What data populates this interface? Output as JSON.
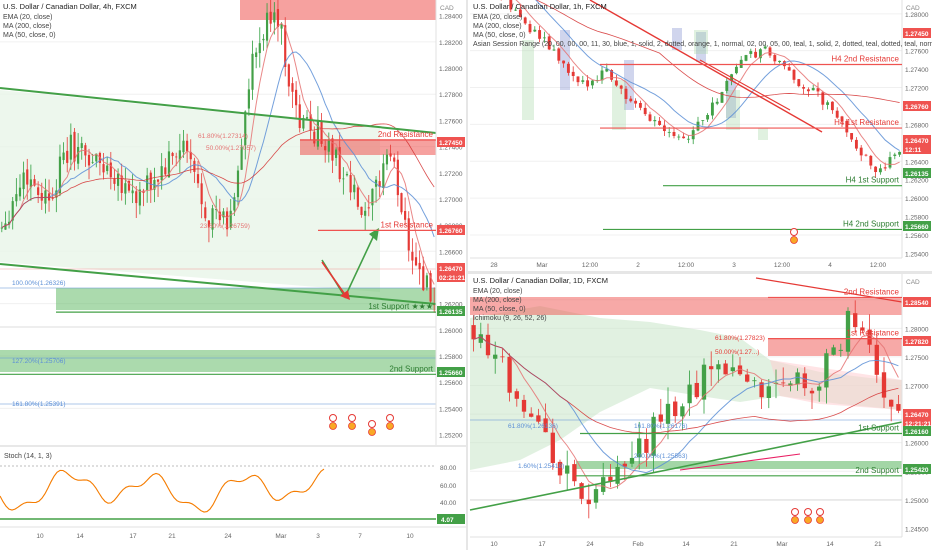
{
  "charts": [
    {
      "id": "left",
      "title": "U.S. Dollar / Canadian Dollar, 4h, FXCM",
      "indicators": [
        "EMA (20, close)",
        "MA (200, close)",
        "MA (50, close, 0)"
      ],
      "currency": "CAD",
      "y_ticks": [
        "1.28400",
        "1.28200",
        "1.28000",
        "1.27800",
        "1.27600",
        "1.27400",
        "1.27200",
        "1.27000",
        "1.26800",
        "1.26600",
        "1.26400",
        "1.26200",
        "1.26000",
        "1.25800",
        "1.25600",
        "1.25400",
        "1.25200"
      ],
      "price_tags": [
        {
          "label": "1.27450",
          "color": "#ef5350"
        },
        {
          "label": "1.26760",
          "color": "#ef5350"
        },
        {
          "label": "1.26470",
          "color": "#ef5350"
        },
        {
          "label": "02:21:21",
          "color": "#ef5350"
        },
        {
          "label": "1.26135",
          "color": "#43a047"
        },
        {
          "label": "1.25660",
          "color": "#43a047"
        }
      ],
      "levels": [
        {
          "name": "2nd Resistance",
          "price": 1.2745,
          "color": "#ef5350"
        },
        {
          "name": "1st Resistance",
          "price": 1.2676,
          "color": "#ef5350"
        },
        {
          "name": "1st Support ★★★",
          "price": 1.26135,
          "color": "#43a047"
        },
        {
          "name": "2nd Support",
          "price": 1.2566,
          "color": "#43a047"
        }
      ],
      "fib_labels": [
        "100.00%(1.26326)",
        "23.60%(1.26759)",
        "127.20%(1.25706)",
        "161.80%(1.25391)",
        "61.80%(1.27314)",
        "50.00%(1.27057)"
      ],
      "x_ticks": [
        "10",
        "14",
        "17",
        "21",
        "24",
        "Mar",
        "3",
        "7",
        "10"
      ],
      "stoch": {
        "label": "Stoch (14, 1, 3)",
        "y_ticks": [
          "80.00",
          "60.00",
          "40.00",
          "20.00"
        ],
        "tag": "4.07"
      }
    },
    {
      "id": "top-right",
      "title": "U.S. Dollar / Canadian Dollar, 1h, FXCM",
      "indicators": [
        "EMA (20, close)",
        "MA (200, close)",
        "MA (50, close, 0)",
        "Asian Session Range (20, 00, 00, 00, 11, 30, blue, 1, solid, 2, dotted, orange, 1, normal, 02, 00, 05, 00, teal, 1, solid, 2, dotted, teal, dotted, teal, normal, 08, 0"
      ],
      "currency": "CAD",
      "y_ticks": [
        "1.28000",
        "1.27800",
        "1.27600",
        "1.27400",
        "1.27200",
        "1.27000",
        "1.26800",
        "1.26600",
        "1.26400",
        "1.26200",
        "1.26000",
        "1.25800",
        "1.25600",
        "1.25400"
      ],
      "price_tags": [
        {
          "label": "1.27450",
          "color": "#ef5350"
        },
        {
          "label": "1.26760",
          "color": "#ef5350"
        },
        {
          "label": "1.26470",
          "color": "#ef5350"
        },
        {
          "label": "12:11",
          "color": "#ef5350"
        },
        {
          "label": "1.26135",
          "color": "#43a047"
        },
        {
          "label": "1.25660",
          "color": "#43a047"
        }
      ],
      "levels": [
        {
          "name": "H4 2nd Resistance",
          "price": 1.2745,
          "color": "#ef5350"
        },
        {
          "name": "H4 1st Resistance",
          "price": 1.2676,
          "color": "#ef5350"
        },
        {
          "name": "H4 1st Support",
          "price": 1.26135,
          "color": "#43a047"
        },
        {
          "name": "H4 2nd Support",
          "price": 1.2566,
          "color": "#43a047"
        }
      ],
      "x_ticks": [
        "28",
        "Mar",
        "12:00",
        "2",
        "12:00",
        "3",
        "12:00",
        "4",
        "12:00"
      ]
    },
    {
      "id": "bottom-right",
      "title": "U.S. Dollar / Canadian Dollar, 1D, FXCM",
      "indicators": [
        "EMA (20, close)",
        "MA (200, close)",
        "MA (50, close, 0)",
        "Ichimoku (9, 26, 52, 26)"
      ],
      "currency": "CAD",
      "y_ticks": [
        "1.28500",
        "1.28000",
        "1.27500",
        "1.27000",
        "1.26500",
        "1.26000",
        "1.25500",
        "1.25000",
        "1.24500"
      ],
      "price_tags": [
        {
          "label": "1.28540",
          "color": "#ef5350"
        },
        {
          "label": "1.27820",
          "color": "#ef5350"
        },
        {
          "label": "1.26470",
          "color": "#ef5350"
        },
        {
          "label": "12:21:21",
          "color": "#ef5350"
        },
        {
          "label": "1.26160",
          "color": "#43a047"
        },
        {
          "label": "1.25420",
          "color": "#43a047"
        }
      ],
      "levels": [
        {
          "name": "2nd Resistance",
          "price": 1.2854,
          "color": "#ef5350"
        },
        {
          "name": "1st Resistance",
          "price": 1.2782,
          "color": "#ef5350"
        },
        {
          "name": "1st Support",
          "price": 1.2616,
          "color": "#43a047"
        },
        {
          "name": "2nd Support",
          "price": 1.2542,
          "color": "#43a047"
        }
      ],
      "fib_labels": [
        "61.80%(1.27823)",
        "50.00%(1.27...)",
        "61.80%(1.26136)",
        "161.80%(1.26176)",
        "200.00%(1.25563)",
        "1.60%(1.25418)"
      ],
      "x_ticks": [
        "10",
        "17",
        "24",
        "Feb",
        "14",
        "21",
        "Mar",
        "14",
        "21"
      ]
    }
  ]
}
